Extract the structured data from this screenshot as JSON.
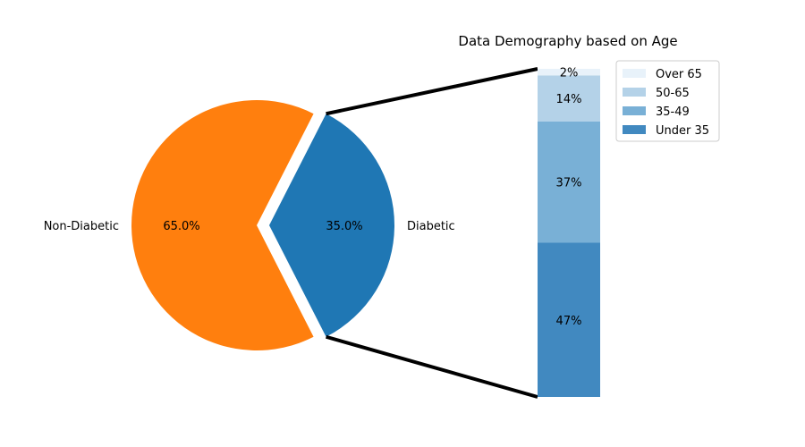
{
  "chart_data": [
    {
      "type": "pie",
      "categories": [
        "Diabetic",
        "Non-Diabetic"
      ],
      "values": [
        35.0,
        65.0
      ],
      "value_labels": [
        "35.0%",
        "65.0%"
      ],
      "colors": [
        "#1f77b4",
        "#ff7f0e"
      ],
      "exploded": "Diabetic",
      "legend": false
    },
    {
      "type": "bar",
      "stacked": true,
      "title": "Data Demography based on Age",
      "categories": [
        "Under 35",
        "35-49",
        "50-65",
        "Over 65"
      ],
      "values": [
        0.47,
        0.37,
        0.14,
        0.02
      ],
      "value_labels": [
        "47%",
        "37%",
        "14%",
        "2%"
      ],
      "colors": [
        "#4189c0",
        "#79b0d6",
        "#b4d2e8",
        "#e8f2fa"
      ],
      "breakdown_of": "Diabetic",
      "legend": {
        "placement": "upper-right",
        "order": [
          "Over 65",
          "50-65",
          "35-49",
          "Under 35"
        ]
      },
      "axes_visible": false
    }
  ]
}
